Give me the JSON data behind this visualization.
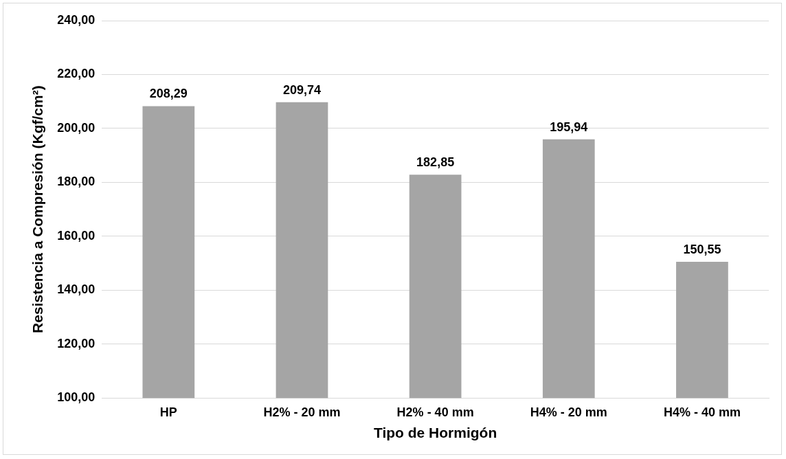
{
  "chart_data": {
    "type": "bar",
    "xlabel": "Tipo de Hormigón",
    "ylabel": "Resistencia a Compresión (Kgf/cm²)",
    "categories": [
      "HP",
      "H2% - 20 mm",
      "H2% - 40 mm",
      "H4% - 20 mm",
      "H4% - 40 mm"
    ],
    "values": [
      208.29,
      209.74,
      182.85,
      195.94,
      150.55
    ],
    "value_labels": [
      "208,29",
      "209,74",
      "182,85",
      "195,94",
      "150,55"
    ],
    "color": "#a5a5a5",
    "ylim": [
      100,
      240
    ],
    "yticks": [
      {
        "value": 100,
        "label": "100,00"
      },
      {
        "value": 120,
        "label": "120,00"
      },
      {
        "value": 140,
        "label": "140,00"
      },
      {
        "value": 160,
        "label": "160,00"
      },
      {
        "value": 180,
        "label": "180,00"
      },
      {
        "value": 200,
        "label": "200,00"
      },
      {
        "value": 220,
        "label": "220,00"
      },
      {
        "value": 240,
        "label": "240,00"
      }
    ],
    "grid": "y",
    "legend": false
  }
}
